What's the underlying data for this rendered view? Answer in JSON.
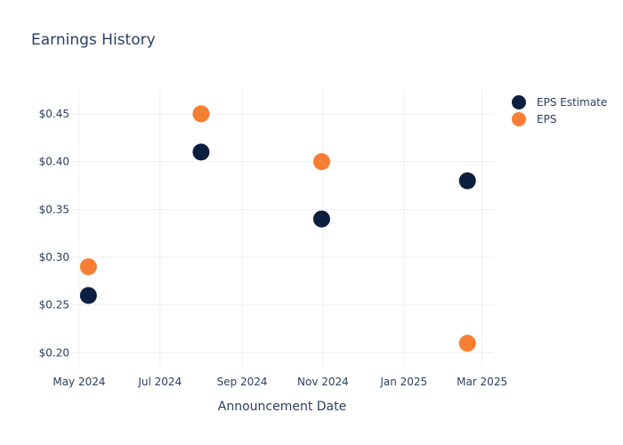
{
  "chart_data": {
    "type": "scatter",
    "title": "Earnings History",
    "xlabel": "Announcement Date",
    "ylabel": "",
    "x_ticks": [
      {
        "date": "2024-05-01",
        "label": "May 2024"
      },
      {
        "date": "2024-07-01",
        "label": "Jul 2024"
      },
      {
        "date": "2024-09-01",
        "label": "Sep 2024"
      },
      {
        "date": "2024-11-01",
        "label": "Nov 2024"
      },
      {
        "date": "2025-01-01",
        "label": "Jan 2025"
      },
      {
        "date": "2025-03-01",
        "label": "Mar 2025"
      }
    ],
    "y_ticks": [
      {
        "value": 0.2,
        "label": "$0.20"
      },
      {
        "value": 0.25,
        "label": "$0.25"
      },
      {
        "value": 0.3,
        "label": "$0.30"
      },
      {
        "value": 0.35,
        "label": "$0.35"
      },
      {
        "value": 0.4,
        "label": "$0.40"
      },
      {
        "value": 0.45,
        "label": "$0.45"
      }
    ],
    "xlim": [
      "2024-04-25",
      "2025-03-10"
    ],
    "ylim": [
      0.1855,
      0.476
    ],
    "grid": true,
    "legend_position": "top-right",
    "series": [
      {
        "name": "EPS Estimate",
        "color": "#0c1f3f",
        "points": [
          {
            "x": "2024-05-08",
            "y": 0.26
          },
          {
            "x": "2024-08-01",
            "y": 0.41
          },
          {
            "x": "2024-10-31",
            "y": 0.34
          },
          {
            "x": "2025-02-18",
            "y": 0.38
          }
        ]
      },
      {
        "name": "EPS",
        "color": "#f57e33",
        "points": [
          {
            "x": "2024-05-08",
            "y": 0.29
          },
          {
            "x": "2024-08-01",
            "y": 0.45
          },
          {
            "x": "2024-10-31",
            "y": 0.4
          },
          {
            "x": "2025-02-18",
            "y": 0.21
          }
        ]
      }
    ]
  }
}
